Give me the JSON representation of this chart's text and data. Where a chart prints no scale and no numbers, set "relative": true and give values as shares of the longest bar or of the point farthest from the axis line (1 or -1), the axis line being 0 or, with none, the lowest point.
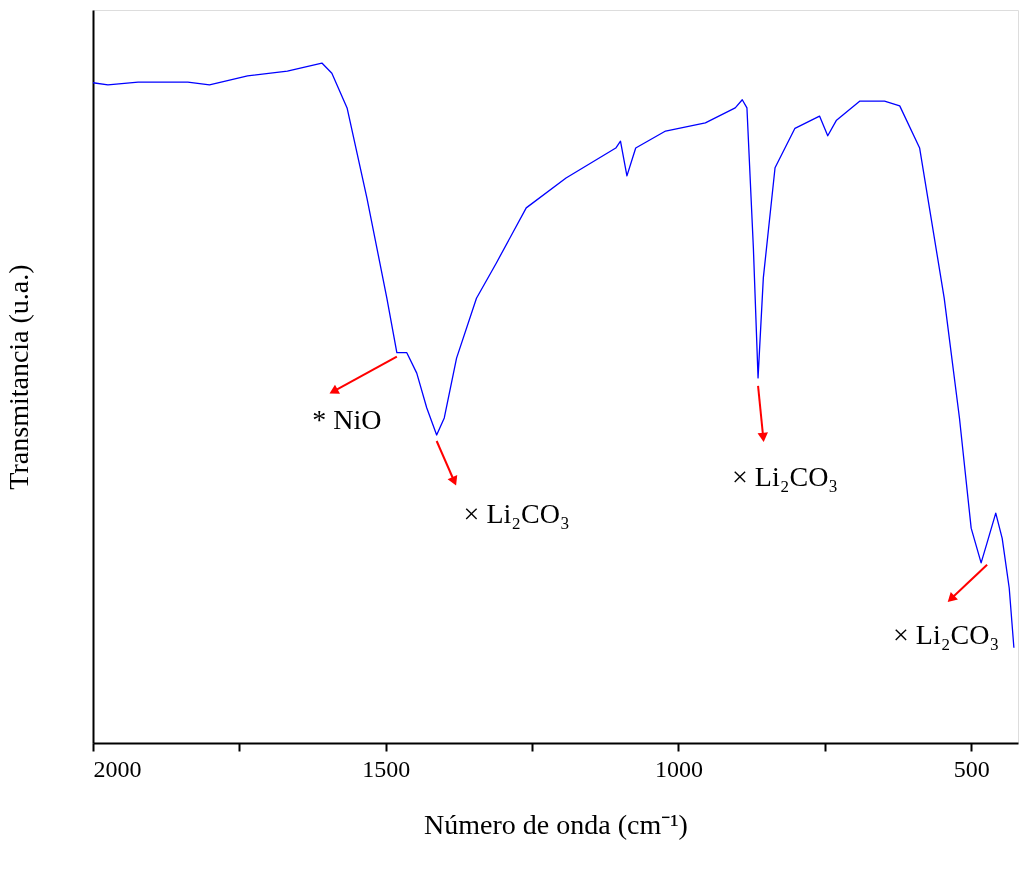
{
  "chart_data": {
    "type": "line",
    "relative": true,
    "xlabel": "Número de onda (cm⁻¹)",
    "ylabel": "Transmitancia (u.a.)",
    "xlim": [
      2000,
      420
    ],
    "xticks": [
      2000,
      {
        "value": 1750,
        "label": null
      },
      1500,
      {
        "value": 1250,
        "label": null
      },
      1000,
      {
        "value": 750,
        "label": null
      },
      500
    ],
    "tick_labels": "x",
    "grid": false,
    "marker": "none",
    "line_style": "solid",
    "series": [
      {
        "color": "#0000ff",
        "x": [
          2000,
          1974.5,
          1923,
          1838,
          1801,
          1736,
          1668,
          1609,
          1592,
          1566,
          1532,
          1498,
          1481,
          1464,
          1447,
          1430,
          1413,
          1400,
          1379,
          1345,
          1311,
          1260,
          1192,
          1107,
          1099,
          1088,
          1073,
          1022,
          954,
          903,
          891,
          883,
          872,
          864,
          855,
          835,
          801,
          759,
          745,
          730,
          690,
          648,
          622,
          588,
          546,
          520,
          500,
          483,
          473,
          458,
          447,
          435,
          427
        ],
        "values": [
          0.971,
          0.968,
          0.972,
          0.972,
          0.968,
          0.981,
          0.988,
          1.0,
          0.985,
          0.934,
          0.801,
          0.654,
          0.574,
          0.574,
          0.544,
          0.493,
          0.453,
          0.478,
          0.566,
          0.654,
          0.706,
          0.787,
          0.831,
          0.875,
          0.885,
          0.834,
          0.875,
          0.9,
          0.912,
          0.934,
          0.946,
          0.934,
          0.728,
          0.537,
          0.684,
          0.846,
          0.904,
          0.922,
          0.893,
          0.916,
          0.944,
          0.944,
          0.937,
          0.875,
          0.654,
          0.478,
          0.316,
          0.265,
          0.294,
          0.338,
          0.301,
          0.228,
          0.14
        ]
      }
    ],
    "annotations": [
      {
        "text": "* NiO",
        "x": 1481,
        "y": 0.574
      },
      {
        "text": "× Li₂CO₃",
        "x": 1413,
        "y": 0.453
      },
      {
        "text": "× Li₂CO₃",
        "x": 864,
        "y": 0.537
      },
      {
        "text": "× Li₂CO₃",
        "x": 483,
        "y": 0.265
      }
    ]
  }
}
